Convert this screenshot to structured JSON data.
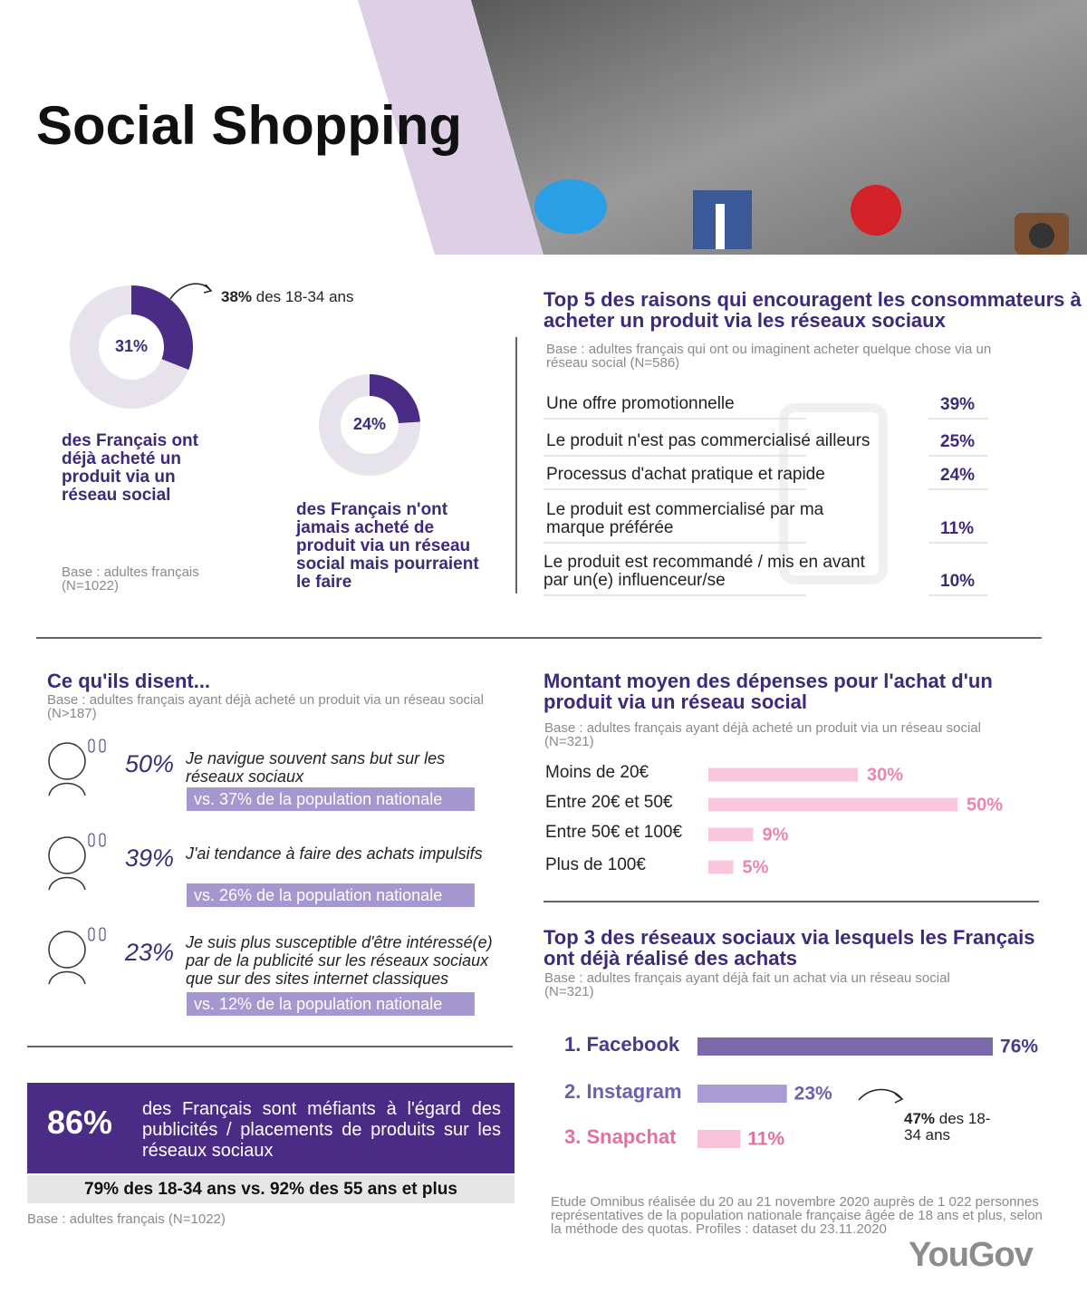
{
  "header": {
    "title": "Social Shopping"
  },
  "intro": {
    "callout": {
      "value": "38%",
      "text": "des 18-34 ans"
    },
    "donut1": {
      "value": 31,
      "label": "31%",
      "text": "des Français ont déjà acheté un produit via un réseau social"
    },
    "donut2": {
      "value": 24,
      "label": "24%",
      "text": "des Français n'ont jamais acheté de produit via un réseau social mais pourraient le faire"
    },
    "base": "Base : adultes français (N=1022)",
    "color": "#4a2b85",
    "track_color": "#e6e3ec"
  },
  "reasons": {
    "title": "Top 5 des raisons qui encouragent les consommateurs à acheter un produit via les réseaux sociaux",
    "base": "Base : adultes français qui ont ou imaginent acheter quelque chose via un réseau social (N=586)",
    "items": [
      {
        "label": "Une offre promotionnelle",
        "value": "39%"
      },
      {
        "label": "Le produit n'est pas commercialisé ailleurs",
        "value": "25%"
      },
      {
        "label": "Processus d'achat pratique et rapide",
        "value": "24%"
      },
      {
        "label": "Le produit est commercialisé par ma marque préférée",
        "value": "11%"
      },
      {
        "label": "Le produit est recommandé / mis en avant par un(e) influenceur/se",
        "value": "10%"
      }
    ]
  },
  "quotes": {
    "title": "Ce qu'ils disent...",
    "base": "Base : adultes français ayant déjà acheté un produit via un réseau social (N>187)",
    "items": [
      {
        "value": "50%",
        "text": "Je navigue souvent sans but sur les réseaux sociaux",
        "comparison": "vs. 37% de la population nationale"
      },
      {
        "value": "39%",
        "text": "J'ai tendance à faire des achats impulsifs",
        "comparison": "vs. 26% de la population nationale"
      },
      {
        "value": "23%",
        "text": "Je suis plus susceptible d'être intéressé(e) par de la publicité sur les réseaux sociaux que sur des sites internet classiques",
        "comparison": "vs. 12% de la population nationale"
      }
    ]
  },
  "banner": {
    "value": "86%",
    "text": "des Français sont méfiants à l'égard des publicités / placements de produits sur les réseaux sociaux",
    "sub": "79% des 18-34 ans vs. 92% des 55 ans et plus",
    "base": "Base : adultes français (N=1022)"
  },
  "spending": {
    "type": "bar",
    "title": "Montant moyen des dépenses pour l'achat d'un produit via un réseau social",
    "base": "Base : adultes français ayant déjà acheté un produit via un réseau social (N=321)",
    "categories": [
      "Moins de 20€",
      "Entre 20€ et 50€",
      "Entre 50€ et 100€",
      "Plus de 100€"
    ],
    "values": [
      30,
      50,
      9,
      5
    ],
    "value_labels": [
      "30%",
      "50%",
      "9%",
      "5%"
    ],
    "color": "#f9c7dd",
    "label_color": "#ee82b0"
  },
  "networks": {
    "type": "bar",
    "title": "Top 3 des réseaux sociaux via lesquels les Français ont déjà réalisé des achats",
    "base": "Base : adultes français ayant déjà fait un achat via un réseau social (N=321)",
    "categories": [
      "1. Facebook",
      "2. Instagram",
      "3. Snapchat"
    ],
    "values": [
      76,
      23,
      11
    ],
    "value_labels": [
      "76%",
      "23%",
      "11%"
    ],
    "colors": [
      "#7a68a8",
      "#a99bd6",
      "#f8c3d8"
    ],
    "label_colors": [
      "#4b3a8a",
      "#6f5fb0",
      "#e56fa3"
    ],
    "callout": {
      "value": "47%",
      "text": "des 18-34 ans"
    }
  },
  "footer": {
    "note": "Etude Omnibus réalisée du 20 au 21 novembre 2020 auprès de 1 022 personnes représentatives de la population nationale française âgée de 18 ans et plus, selon la méthode des quotas. Profiles : dataset du 23.11.2020",
    "logo": "YouGov"
  }
}
